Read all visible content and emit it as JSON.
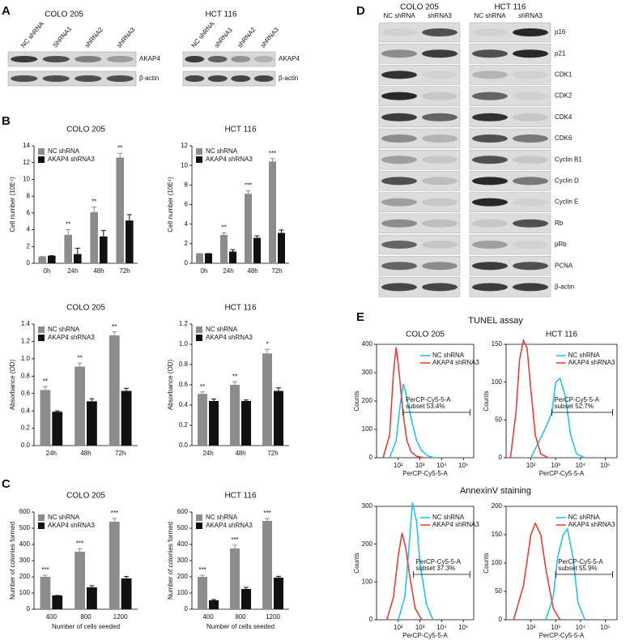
{
  "panel_labels": [
    "A",
    "B",
    "C",
    "D",
    "E"
  ],
  "blots_a": [
    {
      "title": "COLO 205",
      "lanes": [
        "NC shRNA",
        "ShRNA1",
        "shRNA2",
        "shRNA3"
      ],
      "rows": [
        "AKAP4",
        "β-actin"
      ]
    },
    {
      "title": "HCT 116",
      "lanes": [
        "NC shRNA",
        "shRNA1",
        "shRNA2",
        "shRNA3"
      ],
      "rows": [
        "AKAP4",
        "β-actin"
      ]
    }
  ],
  "blots_d": {
    "groups": [
      {
        "title": "COLO 205",
        "lanes": [
          "NC shRNA",
          "shRNA3"
        ]
      },
      {
        "title": "HCT 116",
        "lanes": [
          "NC shRNA",
          "shRNA3"
        ]
      }
    ],
    "rows": [
      "p16",
      "p21",
      "CDK1",
      "CDK2",
      "CDK4",
      "CDK6",
      "Cyclin B1",
      "Cyclin D",
      "Cyclin E",
      "Rb",
      "pRb",
      "PCNA",
      "β-actin"
    ]
  },
  "flow_titles": [
    "TUNEL assay",
    "AnnexinV staining"
  ],
  "chart_data": [
    {
      "type": "bar",
      "title": "COLO 205",
      "ylabel": "Cell number (10E⁴)",
      "categories": [
        "0h",
        "24h",
        "48h",
        "72h"
      ],
      "ylim": [
        0,
        14
      ],
      "yticks": [
        0,
        2,
        4,
        6,
        8,
        10,
        12,
        14
      ],
      "series": [
        {
          "name": "NC shRNA",
          "color": "#8c8c8c",
          "values": [
            0.8,
            3.4,
            6.1,
            12.6
          ],
          "errors": [
            0,
            0.6,
            0.6,
            0.5
          ]
        },
        {
          "name": "AKAP4 shRNA3",
          "color": "#111111",
          "values": [
            0.9,
            1.1,
            3.2,
            5.1
          ],
          "errors": [
            0,
            0.7,
            0.7,
            0.7
          ]
        }
      ],
      "annotations": [
        null,
        "**",
        "**",
        "**"
      ]
    },
    {
      "type": "bar",
      "title": "HCT 116",
      "ylabel": "Cell number (10E⁴)",
      "categories": [
        "0h",
        "24h",
        "48h",
        "72h"
      ],
      "ylim": [
        0,
        12
      ],
      "yticks": [
        0,
        2,
        4,
        6,
        8,
        10,
        12
      ],
      "series": [
        {
          "name": "NC shRNA",
          "color": "#8c8c8c",
          "values": [
            1.0,
            2.9,
            7.1,
            10.4
          ],
          "errors": [
            0,
            0.2,
            0.3,
            0.3
          ]
        },
        {
          "name": "AKAP4 shRNA3",
          "color": "#111111",
          "values": [
            1.0,
            1.2,
            2.6,
            3.1
          ],
          "errors": [
            0,
            0.2,
            0.2,
            0.3
          ]
        }
      ],
      "annotations": [
        null,
        "**",
        "***",
        "***"
      ]
    },
    {
      "type": "bar",
      "title": "COLO 205",
      "ylabel": "Absorbance (OD)",
      "categories": [
        "24h",
        "48h",
        "72h"
      ],
      "ylim": [
        0,
        1.4
      ],
      "yticks": [
        {
          "value": 0,
          "label": "0.0"
        },
        0.2,
        0.4,
        0.6,
        0.8,
        {
          "value": 1,
          "label": "1.0"
        },
        1.2,
        1.4
      ],
      "series": [
        {
          "name": "NC shRNA",
          "color": "#8c8c8c",
          "values": [
            0.64,
            0.91,
            1.27
          ],
          "errors": [
            0.04,
            0.04,
            0.04
          ]
        },
        {
          "name": "AKAP4 shRNA3",
          "color": "#111111",
          "values": [
            0.39,
            0.51,
            0.63
          ],
          "errors": [
            0.01,
            0.03,
            0.03
          ]
        }
      ],
      "annotations": [
        "**",
        "**",
        "**"
      ]
    },
    {
      "type": "bar",
      "title": "HCT 116",
      "ylabel": "Absorbance (OD)",
      "categories": [
        "24h",
        "48h",
        "72h"
      ],
      "ylim": [
        0,
        1.2
      ],
      "yticks": [
        {
          "value": 0,
          "label": "0.0"
        },
        0.2,
        0.4,
        0.6,
        0.8,
        {
          "value": 1,
          "label": "1.0"
        },
        1.2
      ],
      "series": [
        {
          "name": "NC shRNA",
          "color": "#8c8c8c",
          "values": [
            0.51,
            0.6,
            0.91
          ],
          "errors": [
            0.02,
            0.03,
            0.04
          ]
        },
        {
          "name": "AKAP4 shRNA3",
          "color": "#111111",
          "values": [
            0.44,
            0.44,
            0.54
          ],
          "errors": [
            0.02,
            0.01,
            0.03
          ]
        }
      ],
      "annotations": [
        "**",
        "**",
        "*"
      ]
    },
    {
      "type": "bar",
      "title": "COLO 205",
      "ylabel": "Number of colonies formed",
      "xlabel": "Number of cells seeded",
      "categories": [
        "400",
        "800",
        "1200"
      ],
      "ylim": [
        0,
        600
      ],
      "yticks": [
        0,
        100,
        200,
        300,
        400,
        500,
        600
      ],
      "series": [
        {
          "name": "NC shRNA",
          "color": "#8c8c8c",
          "values": [
            200,
            355,
            540
          ],
          "errors": [
            10,
            18,
            20
          ]
        },
        {
          "name": "AKAP4 shRNA3",
          "color": "#111111",
          "values": [
            85,
            135,
            190
          ],
          "errors": [
            0,
            10,
            12
          ]
        }
      ],
      "annotations": [
        "***",
        "***",
        "***"
      ]
    },
    {
      "type": "bar",
      "title": "HCT 116",
      "ylabel": "Number of colonies formed",
      "xlabel": "Number of cells seeded",
      "categories": [
        "400",
        "800",
        "1200"
      ],
      "ylim": [
        0,
        600
      ],
      "yticks": [
        0,
        100,
        200,
        300,
        400,
        500,
        600
      ],
      "series": [
        {
          "name": "NC shRNA",
          "color": "#8c8c8c",
          "values": [
            200,
            375,
            545
          ],
          "errors": [
            10,
            20,
            15
          ]
        },
        {
          "name": "AKAP4 shRNA3",
          "color": "#111111",
          "values": [
            55,
            125,
            195
          ],
          "errors": [
            5,
            10,
            8
          ]
        }
      ],
      "annotations": [
        "***",
        "***",
        "***"
      ]
    },
    {
      "type": "line",
      "title": "COLO 205",
      "ylabel": "Counts",
      "xlabel": "PerCP-Cy5-5-A",
      "xlog": true,
      "xlim": [
        10,
        300000
      ],
      "xticks": [
        {
          "value": 100,
          "label": "10²"
        },
        {
          "value": 1000,
          "label": "10³"
        },
        {
          "value": 10000,
          "label": "10⁴"
        },
        {
          "value": 100000,
          "label": "10⁵"
        }
      ],
      "ylim": [
        0,
        400
      ],
      "yticks": [
        0,
        100,
        200,
        300,
        400
      ],
      "series": [
        {
          "name": "NC shRNA",
          "color": "#22c4ee",
          "x": [
            40,
            80,
            120,
            170,
            220,
            300,
            450,
            700,
            1200,
            2500,
            5000
          ],
          "values": [
            0,
            60,
            180,
            260,
            230,
            180,
            120,
            60,
            25,
            5,
            0
          ]
        },
        {
          "name": "AKAP4 shRNA3",
          "color": "#ee3b3b",
          "x": [
            20,
            40,
            60,
            80,
            100,
            130,
            170,
            250,
            400,
            700,
            1500
          ],
          "values": [
            0,
            80,
            300,
            390,
            330,
            240,
            150,
            60,
            20,
            5,
            0
          ]
        }
      ],
      "gate": {
        "label": "PerCP-Cy5-5-A",
        "subset": "subset 53.4%",
        "x": [
          170,
          200000
        ]
      }
    },
    {
      "type": "line",
      "title": "HCT 116",
      "ylabel": "Counts",
      "xlabel": "PerCP-Cy5-5-A",
      "xlog": true,
      "xlim": [
        10,
        300000
      ],
      "xticks": [
        {
          "value": 100,
          "label": "10²"
        },
        {
          "value": 1000,
          "label": "10³"
        },
        {
          "value": 10000,
          "label": "10⁴"
        },
        {
          "value": 100000,
          "label": "10⁵"
        }
      ],
      "ylim": [
        0,
        150
      ],
      "yticks": [
        0,
        50,
        100,
        150
      ],
      "series": [
        {
          "name": "NC shRNA",
          "color": "#22c4ee",
          "x": [
            100,
            200,
            400,
            700,
            1000,
            1500,
            2500,
            4000,
            7000,
            15000
          ],
          "values": [
            0,
            20,
            40,
            60,
            100,
            105,
            80,
            30,
            5,
            0
          ]
        },
        {
          "name": "AKAP4 shRNA3",
          "color": "#ee3b3b",
          "x": [
            15,
            25,
            35,
            50,
            70,
            100,
            150,
            250,
            500
          ],
          "values": [
            0,
            60,
            130,
            155,
            145,
            90,
            30,
            5,
            0
          ]
        }
      ],
      "gate": {
        "label": "PerCP-Cy5-5-A",
        "subset": "subset 52.7%",
        "x": [
          700,
          200000
        ]
      }
    },
    {
      "type": "line",
      "ylabel": "Counts",
      "xlabel": "PerCP-Cy5-5-A",
      "xlog": true,
      "xlim": [
        10,
        300000
      ],
      "xticks": [
        {
          "value": 100,
          "label": "10²"
        },
        {
          "value": 1000,
          "label": "10³"
        },
        {
          "value": 10000,
          "label": "10⁴"
        },
        {
          "value": 100000,
          "label": "10⁵"
        }
      ],
      "ylim": [
        0,
        300
      ],
      "yticks": [
        0,
        100,
        200,
        300
      ],
      "series": [
        {
          "name": "NC shRNA",
          "color": "#22c4ee",
          "x": [
            100,
            200,
            300,
            450,
            700,
            1000,
            2000,
            4000
          ],
          "values": [
            0,
            60,
            180,
            310,
            260,
            150,
            40,
            0
          ]
        },
        {
          "name": "AKAP4 shRNA3",
          "color": "#ee3b3b",
          "x": [
            30,
            60,
            100,
            150,
            220,
            350,
            600,
            1200
          ],
          "values": [
            0,
            60,
            170,
            230,
            190,
            110,
            30,
            0
          ]
        }
      ],
      "gate": {
        "label": "PerCP-Cy5-5-A",
        "subset": "subset 37.3%",
        "x": [
          500,
          200000
        ]
      }
    },
    {
      "type": "line",
      "ylabel": "Counts",
      "xlabel": "PerCP-Cy5-5-A",
      "xlog": true,
      "xlim": [
        10,
        300000
      ],
      "xticks": [
        {
          "value": 100,
          "label": "10²"
        },
        {
          "value": 1000,
          "label": "10³"
        },
        {
          "value": 10000,
          "label": "10⁴"
        },
        {
          "value": 100000,
          "label": "10⁵"
        }
      ],
      "ylim": [
        0,
        200
      ],
      "yticks": [
        0,
        50,
        100,
        150,
        200
      ],
      "series": [
        {
          "name": "NC shRNA",
          "color": "#22c4ee",
          "x": [
            400,
            800,
            1200,
            2000,
            3000,
            5000,
            8000,
            15000
          ],
          "values": [
            0,
            40,
            110,
            150,
            160,
            110,
            30,
            0
          ]
        },
        {
          "name": "AKAP4 shRNA3",
          "color": "#ee3b3b",
          "x": [
            20,
            50,
            100,
            150,
            250,
            400,
            800,
            1500
          ],
          "values": [
            0,
            60,
            150,
            170,
            150,
            90,
            20,
            0
          ]
        }
      ],
      "gate": {
        "label": "PerCP-Cy5-5-A",
        "subset": "subset 55.9%",
        "x": [
          1000,
          200000
        ]
      }
    }
  ]
}
